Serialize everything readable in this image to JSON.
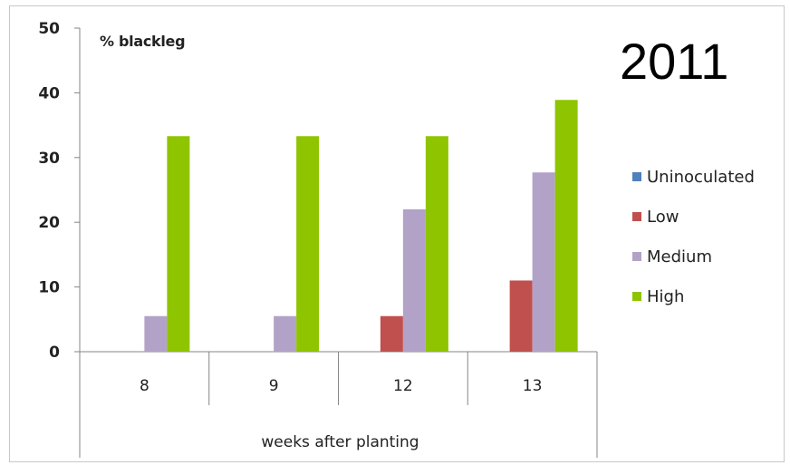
{
  "chart_data": {
    "type": "bar",
    "title": "% blackleg",
    "annotation": "2011",
    "xlabel": "weeks after planting",
    "ylabel": "",
    "categories": [
      "8",
      "9",
      "12",
      "13"
    ],
    "ylim": [
      0,
      50
    ],
    "yticks": [
      0,
      10,
      20,
      30,
      40,
      50
    ],
    "grid": false,
    "legend_position": "right",
    "series": [
      {
        "name": "Uninoculated",
        "color": "#4f81bd",
        "values": [
          0,
          0,
          0,
          0
        ]
      },
      {
        "name": "Low",
        "color": "#c0504d",
        "values": [
          0,
          0,
          5.5,
          11
        ]
      },
      {
        "name": "Medium",
        "color": "#b3a2c7",
        "values": [
          5.5,
          5.5,
          22,
          27.7
        ]
      },
      {
        "name": "High",
        "color": "#8fc400",
        "values": [
          33.3,
          33.3,
          33.3,
          38.9
        ]
      }
    ]
  }
}
